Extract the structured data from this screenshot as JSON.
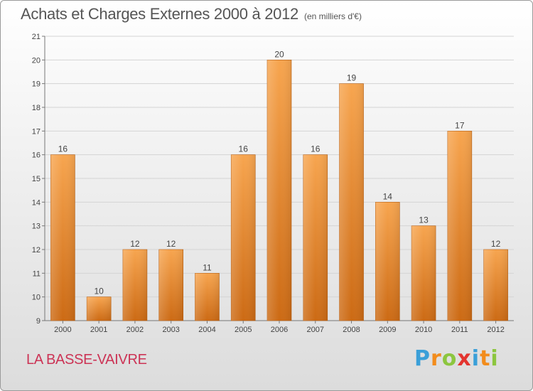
{
  "chart_data": {
    "type": "bar",
    "title": "Achats et Charges Externes 2000 à 2012",
    "subtitle": "(en milliers d'€)",
    "categories": [
      "2000",
      "2001",
      "2002",
      "2003",
      "2004",
      "2005",
      "2006",
      "2007",
      "2008",
      "2009",
      "2010",
      "2011",
      "2012"
    ],
    "values": [
      16,
      10,
      12,
      12,
      11,
      16,
      20,
      16,
      19,
      14,
      13,
      17,
      12
    ],
    "ylim": [
      9,
      21
    ],
    "yticks": [
      9,
      10,
      11,
      12,
      13,
      14,
      15,
      16,
      17,
      18,
      19,
      20,
      21
    ],
    "grid": true,
    "bar_color_top": "#f7a54f",
    "bar_color_bottom": "#cc6a14"
  },
  "footer": {
    "commune": "LA BASSE-VAIVRE",
    "logo_letters": [
      "P",
      "r",
      "o",
      "x",
      "i",
      "t",
      "i"
    ],
    "logo_colors": [
      "#3a9fd8",
      "#f28c1c",
      "#8cc63f",
      "#e3342f",
      "#3a9fd8",
      "#f28c1c",
      "#8cc63f"
    ]
  }
}
